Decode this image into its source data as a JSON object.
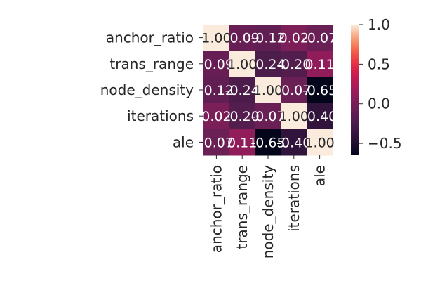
{
  "chart_data": {
    "type": "heatmap",
    "title": "",
    "xlabel": "",
    "ylabel": "",
    "row_labels": [
      "anchor_ratio",
      "trans_range",
      "node_density",
      "iterations",
      "ale"
    ],
    "col_labels": [
      "anchor_ratio",
      "trans_range",
      "node_density",
      "iterations",
      "ale"
    ],
    "values": [
      [
        1.0,
        -0.09,
        -0.12,
        0.02,
        -0.07
      ],
      [
        -0.09,
        1.0,
        -0.24,
        -0.2,
        0.11
      ],
      [
        -0.12,
        -0.24,
        1.0,
        -0.07,
        -0.65
      ],
      [
        0.02,
        -0.2,
        -0.07,
        1.0,
        -0.4
      ],
      [
        -0.07,
        0.11,
        -0.65,
        -0.4,
        1.0
      ]
    ],
    "cell_labels": [
      [
        "1.00",
        "-0.09",
        "-0.12",
        "0.02",
        "-0.07"
      ],
      [
        "-0.09",
        "1.00",
        "-0.24",
        "-0.20",
        "0.11"
      ],
      [
        "-0.12",
        "-0.24",
        "1.00",
        "-0.07",
        "-0.65"
      ],
      [
        "0.02",
        "-0.20",
        "-0.07",
        "1.00",
        "-0.40"
      ],
      [
        "-0.07",
        "0.11",
        "-0.65",
        "-0.40",
        "1.00"
      ]
    ],
    "colormap": "rocket",
    "vmin": -0.65,
    "vmax": 1.0,
    "colorbar": {
      "ticks": [
        1.0,
        0.5,
        0.0,
        -0.5
      ],
      "tick_labels": [
        "1.0",
        "0.5",
        "0.0",
        "−0.5"
      ],
      "placement": "right"
    },
    "x_tick_rotation": "vertical",
    "grid": false
  }
}
